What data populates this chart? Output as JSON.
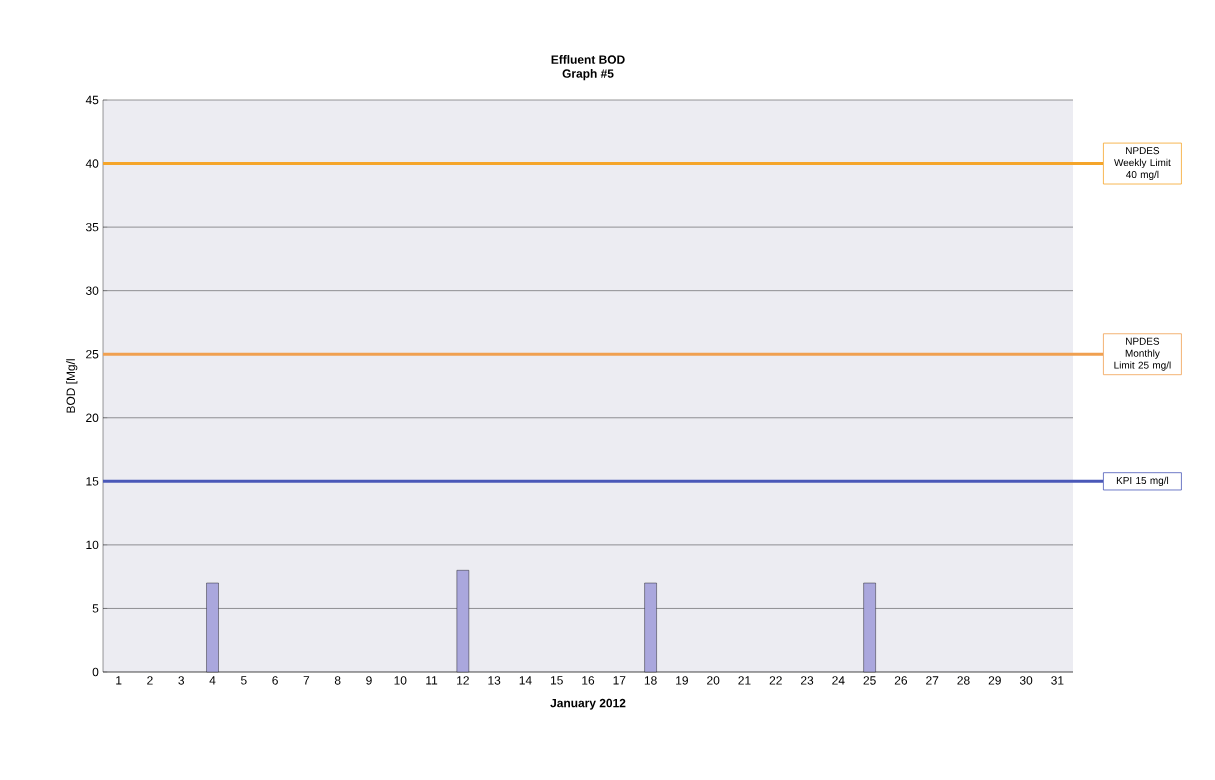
{
  "chart_data": {
    "type": "bar",
    "title": "Effluent BOD",
    "subtitle": "Graph #5",
    "xlabel": "January 2012",
    "ylabel": "BOD [Mg/l",
    "categories": [
      "1",
      "2",
      "3",
      "4",
      "5",
      "6",
      "7",
      "8",
      "9",
      "10",
      "11",
      "12",
      "13",
      "14",
      "15",
      "16",
      "17",
      "18",
      "19",
      "20",
      "21",
      "22",
      "23",
      "24",
      "25",
      "26",
      "27",
      "28",
      "29",
      "30",
      "31"
    ],
    "values": [
      null,
      null,
      null,
      7,
      null,
      null,
      null,
      null,
      null,
      null,
      null,
      8,
      null,
      null,
      null,
      null,
      null,
      7,
      null,
      null,
      null,
      null,
      null,
      null,
      7,
      null,
      null,
      null,
      null,
      null,
      null
    ],
    "color": "#aaa7dd",
    "ylim": [
      0,
      45
    ],
    "yticks": [
      0,
      5,
      10,
      15,
      20,
      25,
      30,
      35,
      40,
      45
    ],
    "grid": "y",
    "ref_lines": [
      {
        "axis": "y",
        "value": 40,
        "label": "NPDES Weekly Limit 40 mg/l",
        "color": "#f5a52a"
      },
      {
        "axis": "y",
        "value": 25,
        "label": "NPDES Monthly Limit 25 mg/l",
        "color": "#f0a050"
      },
      {
        "axis": "y",
        "value": 15,
        "label": "KPI 15 mg/l",
        "color": "#4a58b8"
      }
    ]
  }
}
